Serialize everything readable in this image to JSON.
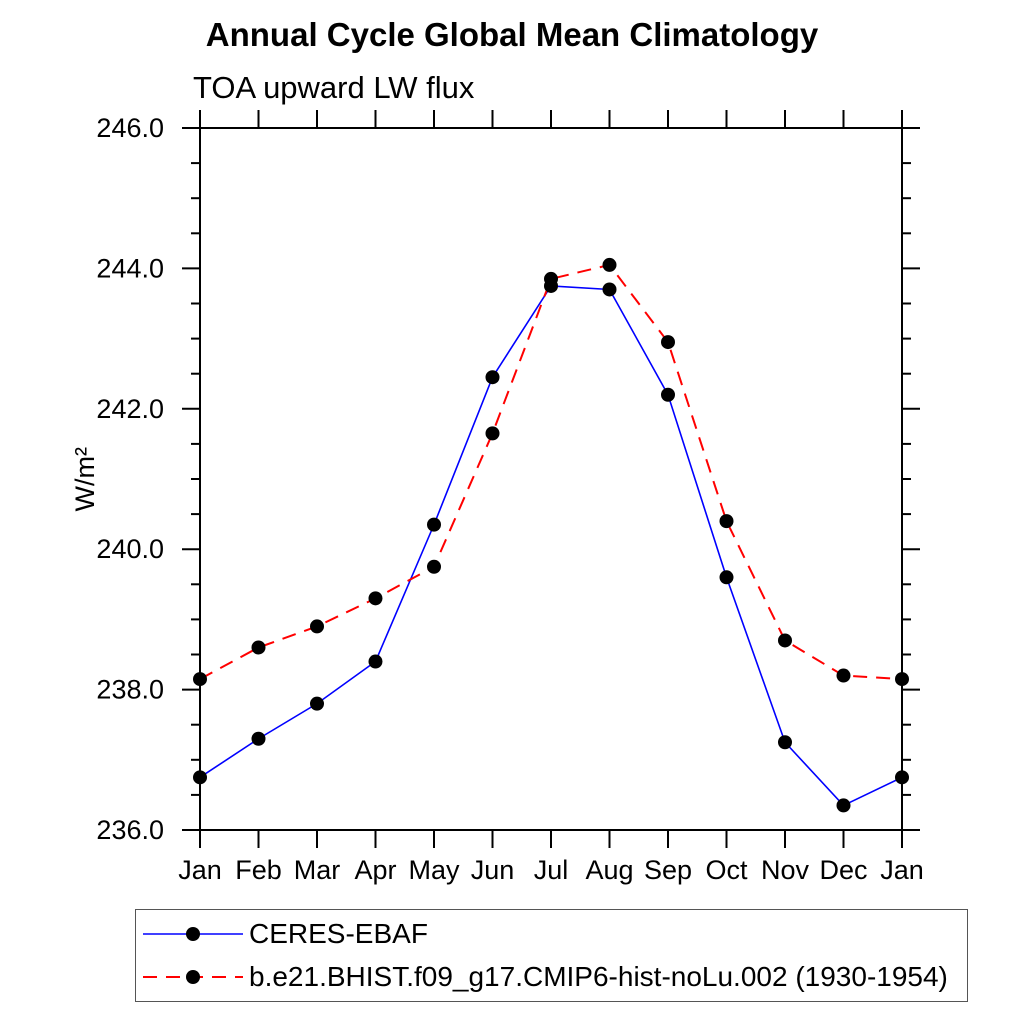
{
  "chart_data": {
    "type": "line",
    "title": "Annual Cycle Global Mean Climatology",
    "subtitle": "TOA upward LW flux",
    "ylabel": "W/m²",
    "categories": [
      "Jan",
      "Feb",
      "Mar",
      "Apr",
      "May",
      "Jun",
      "Jul",
      "Aug",
      "Sep",
      "Oct",
      "Nov",
      "Dec",
      "Jan"
    ],
    "series": [
      {
        "name": "CERES-EBAF",
        "color": "#0000ff",
        "line_style": "solid",
        "marker": "black-dot",
        "values": [
          236.75,
          237.3,
          237.8,
          238.4,
          240.35,
          242.45,
          243.75,
          243.7,
          242.2,
          239.6,
          237.25,
          236.35,
          236.75
        ]
      },
      {
        "name": "b.e21.BHIST.f09_g17.CMIP6-hist-noLu.002 (1930-1954)",
        "color": "#ff0000",
        "line_style": "dashed",
        "marker": "black-dot",
        "values": [
          238.15,
          238.6,
          238.9,
          239.3,
          239.75,
          241.65,
          243.85,
          244.05,
          242.95,
          240.4,
          238.7,
          238.2,
          238.15
        ]
      }
    ],
    "ylim": [
      236.0,
      246.0
    ],
    "ytick_major": 2.0,
    "ytick_minor": 0.5,
    "ytick_labels": [
      "236.0",
      "238.0",
      "240.0",
      "242.0",
      "244.0",
      "246.0"
    ],
    "grid": false,
    "legend_position": "bottom",
    "marker_color": "#000000",
    "axis_color": "#000000"
  }
}
